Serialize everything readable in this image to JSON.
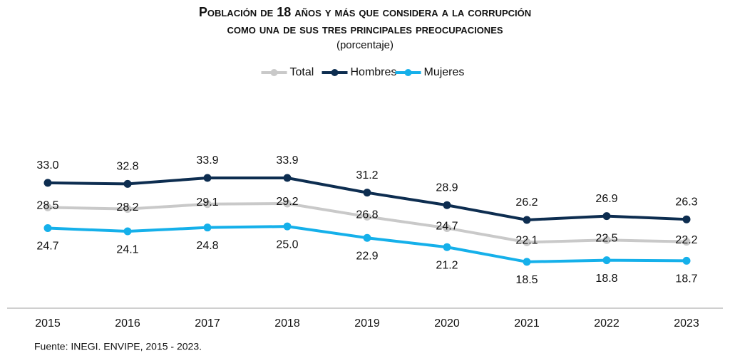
{
  "chart_data": {
    "type": "line",
    "title": "Población de 18 años y más que considera a la corrupción",
    "subtitle": "como una de sus tres principales preocupaciones",
    "unit_note": "(porcentaje)",
    "categories": [
      "2015",
      "2016",
      "2017",
      "2018",
      "2019",
      "2020",
      "2021",
      "2022",
      "2023"
    ],
    "series": [
      {
        "name": "Total",
        "color": "#c9c9c9",
        "values": [
          28.5,
          28.2,
          29.1,
          29.2,
          26.8,
          24.7,
          22.1,
          22.5,
          22.2
        ]
      },
      {
        "name": "Hombres",
        "color": "#0d2d50",
        "values": [
          33.0,
          32.8,
          33.9,
          33.9,
          31.2,
          28.9,
          26.2,
          26.9,
          26.3
        ]
      },
      {
        "name": "Mujeres",
        "color": "#15b0ea",
        "values": [
          24.7,
          24.1,
          24.8,
          25.0,
          22.9,
          21.2,
          18.5,
          18.8,
          18.7
        ]
      }
    ],
    "value_labels": [
      [
        "28.5",
        "28.2",
        "29.1",
        "29.2",
        "26.8",
        "24.7",
        "22.1",
        "22.5",
        "22.2"
      ],
      [
        "33.0",
        "32.8",
        "33.9",
        "33.9",
        "31.2",
        "28.9",
        "26.2",
        "26.9",
        "26.3"
      ],
      [
        "24.7",
        "24.1",
        "24.8",
        "25.0",
        "22.9",
        "21.2",
        "18.5",
        "18.8",
        "18.7"
      ]
    ],
    "ylim": [
      10,
      45
    ],
    "legend": "top",
    "source": "Fuente: INEGI. ENVIPE, 2015 - 2023."
  }
}
